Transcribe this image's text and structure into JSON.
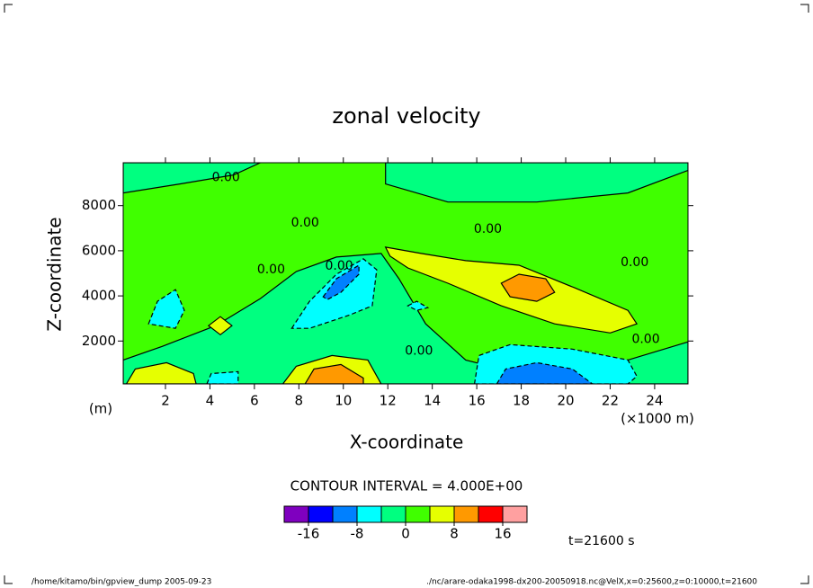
{
  "chart_data": {
    "type": "contour",
    "title": "zonal velocity",
    "xlabel": "X-coordinate",
    "ylabel": "Z-coordinate",
    "xunits": "(×1000 m)",
    "yunits": "(m)",
    "xlim": [
      0.1,
      25.5
    ],
    "ylim": [
      100,
      9900
    ],
    "xticks": [
      2,
      4,
      6,
      8,
      10,
      12,
      14,
      16,
      18,
      20,
      22,
      24
    ],
    "yticks": [
      2000,
      4000,
      6000,
      8000
    ],
    "contour_interval_text": "CONTOUR INTERVAL = 4.000E+00",
    "time_text": "t=21600 s",
    "footer_left": "/home/kitamo/bin/gpview_dump  2005-09-23",
    "footer_right": "./nc/arare-odaka1998-dx200-20050918.nc@VelX,x=0:25600,z=0:10000,t=21600",
    "colorbar": {
      "levels": [
        -20,
        -16,
        -12,
        -8,
        -4,
        0,
        4,
        8,
        12,
        16,
        20
      ],
      "colors": [
        "#7f00bf",
        "#0000ff",
        "#0080ff",
        "#00ffff",
        "#00ff80",
        "#40ff00",
        "#e6ff00",
        "#ff9900",
        "#ff0000",
        "#ffa0a0"
      ],
      "ticks": [
        -16,
        -8,
        0,
        8,
        16
      ]
    },
    "background_level": 0,
    "regions": [
      {
        "level": -4,
        "x": [
          0.1,
          1.85,
          4.26,
          6.27,
          7.88,
          9.69,
          11.7,
          12.5,
          13.7,
          15.5,
          17.1,
          19.5,
          22.8,
          25.5,
          25.5,
          0.1
        ],
        "z": [
          1160,
          1760,
          2680,
          3880,
          5080,
          5720,
          5880,
          4760,
          2760,
          1160,
          760,
          760,
          1160,
          1960,
          100,
          100
        ]
      },
      {
        "level": -4,
        "x": [
          0.1,
          0.1,
          2.65,
          5.07,
          6.27
        ],
        "z": [
          9900,
          8560,
          8960,
          9360,
          9900
        ]
      },
      {
        "level": -4,
        "x": [
          11.9,
          11.9,
          14.7,
          18.7,
          22.8,
          25.5,
          25.5
        ],
        "z": [
          9900,
          8960,
          8160,
          8160,
          8560,
          9560,
          9900
        ]
      },
      {
        "level": -8,
        "x": [
          1.24,
          1.64,
          2.45,
          2.85,
          2.45
        ],
        "z": [
          2760,
          3760,
          4280,
          3360,
          2560
        ]
      },
      {
        "level": -8,
        "x": [
          7.68,
          8.48,
          9.69,
          10.9,
          11.5,
          11.3,
          10.3,
          8.48
        ],
        "z": [
          2560,
          3760,
          4960,
          5640,
          5160,
          3560,
          3160,
          2560
        ]
      },
      {
        "level": -8,
        "x": [
          15.9,
          16.1,
          17.5,
          20.3,
          22.8,
          23.2,
          22.8
        ],
        "z": [
          100,
          1360,
          1840,
          1640,
          1160,
          440,
          100
        ]
      },
      {
        "level": -8,
        "x": [
          3.86,
          4.06,
          5.27,
          5.27
        ],
        "z": [
          100,
          560,
          640,
          100
        ]
      },
      {
        "level": -8,
        "x": [
          12.9,
          13.3,
          13.8,
          13.3
        ],
        "z": [
          3560,
          3760,
          3480,
          3360
        ]
      },
      {
        "level": -12,
        "x": [
          9.09,
          9.69,
          10.7,
          10.7,
          9.89,
          9.29
        ],
        "z": [
          3960,
          4760,
          5360,
          4960,
          4160,
          3840
        ]
      },
      {
        "level": -12,
        "x": [
          16.9,
          17.3,
          18.7,
          20.3,
          21.2
        ],
        "z": [
          100,
          760,
          1040,
          760,
          100
        ]
      },
      {
        "level": 4,
        "x": [
          11.9,
          13.5,
          15.5,
          17.9,
          20.4,
          22.8,
          23.2,
          22.0,
          19.5,
          17.1,
          14.7,
          12.9,
          12.1
        ],
        "z": [
          6160,
          5880,
          5560,
          5360,
          4360,
          3360,
          2760,
          2360,
          2760,
          3560,
          4560,
          5240,
          5760
        ]
      },
      {
        "level": 4,
        "x": [
          3.94,
          4.47,
          4.99,
          4.47
        ],
        "z": [
          2680,
          3080,
          2680,
          2280
        ]
      },
      {
        "level": 4,
        "x": [
          0.24,
          0.64,
          2.05,
          3.26,
          3.38
        ],
        "z": [
          100,
          760,
          1040,
          560,
          100
        ]
      },
      {
        "level": 4,
        "x": [
          7.28,
          7.88,
          9.49,
          11.1,
          11.7
        ],
        "z": [
          100,
          880,
          1360,
          1160,
          100
        ]
      },
      {
        "level": 8,
        "x": [
          17.1,
          17.9,
          19.1,
          19.5,
          18.7,
          17.5
        ],
        "z": [
          4560,
          4960,
          4760,
          4160,
          3760,
          3960
        ]
      },
      {
        "level": 8,
        "x": [
          8.28,
          8.68,
          9.89,
          10.9,
          10.9
        ],
        "z": [
          100,
          760,
          960,
          360,
          100
        ]
      }
    ],
    "contour_labels": [
      {
        "text": "0.00",
        "x": 4.72,
        "z": 9240
      },
      {
        "text": "0.00",
        "x": 8.28,
        "z": 7240
      },
      {
        "text": "0.00",
        "x": 16.5,
        "z": 6960
      },
      {
        "text": "0.00",
        "x": 23.1,
        "z": 5480
      },
      {
        "text": "0.00",
        "x": 6.75,
        "z": 5160
      },
      {
        "text": "0.00",
        "x": 9.81,
        "z": 5320
      },
      {
        "text": "0.00",
        "x": 13.4,
        "z": 1560
      },
      {
        "text": "0.00",
        "x": 23.6,
        "z": 2080
      }
    ]
  }
}
